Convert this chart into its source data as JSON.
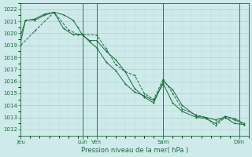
{
  "background_color": "#ceeaea",
  "grid_major_color": "#aacfcf",
  "grid_minor_color": "#bedddd",
  "line_color": "#1a6b3a",
  "title": "Pression niveau de la mer( hPa )",
  "ylim": [
    1011.5,
    1022.5
  ],
  "yticks": [
    1012,
    1013,
    1014,
    1015,
    1016,
    1017,
    1018,
    1019,
    1020,
    1021,
    1022
  ],
  "day_labels": [
    "Jeu",
    "Lun",
    "Ven",
    "Sam",
    "Dim"
  ],
  "day_positions": [
    0.0,
    6.5,
    8.0,
    15.0,
    23.0
  ],
  "vline_positions": [
    6.5,
    8.0,
    15.0,
    23.0
  ],
  "xlim": [
    0,
    24
  ],
  "series1": [
    [
      0.0,
      1019.3
    ],
    [
      0.5,
      1021.1
    ],
    [
      1.5,
      1021.1
    ],
    [
      2.5,
      1021.5
    ],
    [
      3.5,
      1021.75
    ],
    [
      4.5,
      1021.55
    ],
    [
      5.5,
      1021.1
    ],
    [
      6.0,
      1020.5
    ],
    [
      6.5,
      1019.85
    ],
    [
      7.25,
      1019.4
    ],
    [
      8.0,
      1019.4
    ],
    [
      9.0,
      1018.5
    ],
    [
      10.0,
      1017.8
    ],
    [
      11.0,
      1016.8
    ],
    [
      12.0,
      1015.4
    ],
    [
      13.0,
      1014.7
    ],
    [
      14.0,
      1014.2
    ],
    [
      15.0,
      1016.0
    ],
    [
      16.0,
      1015.3
    ],
    [
      17.0,
      1014.0
    ],
    [
      18.5,
      1013.1
    ],
    [
      19.5,
      1013.0
    ],
    [
      20.5,
      1012.8
    ],
    [
      21.5,
      1013.0
    ],
    [
      22.5,
      1012.5
    ],
    [
      23.5,
      1012.4
    ]
  ],
  "series2": [
    [
      0.0,
      1019.85
    ],
    [
      0.5,
      1021.05
    ],
    [
      1.5,
      1021.2
    ],
    [
      2.5,
      1021.6
    ],
    [
      3.5,
      1021.75
    ],
    [
      4.5,
      1020.4
    ],
    [
      5.5,
      1019.9
    ],
    [
      6.0,
      1019.9
    ],
    [
      6.5,
      1019.9
    ],
    [
      7.25,
      1019.3
    ],
    [
      8.0,
      1018.8
    ],
    [
      9.0,
      1017.6
    ],
    [
      10.0,
      1016.9
    ],
    [
      11.0,
      1015.8
    ],
    [
      12.0,
      1015.1
    ],
    [
      13.0,
      1014.8
    ],
    [
      14.0,
      1014.4
    ],
    [
      15.0,
      1015.8
    ],
    [
      16.0,
      1014.2
    ],
    [
      17.0,
      1013.5
    ],
    [
      18.5,
      1013.0
    ],
    [
      19.5,
      1012.9
    ],
    [
      20.5,
      1012.5
    ],
    [
      21.5,
      1013.1
    ],
    [
      22.5,
      1012.9
    ],
    [
      23.5,
      1012.5
    ]
  ],
  "series3": [
    [
      0.0,
      1019.0
    ],
    [
      1.5,
      1020.2
    ],
    [
      3.5,
      1021.75
    ],
    [
      5.0,
      1020.3
    ],
    [
      6.0,
      1019.9
    ],
    [
      6.5,
      1019.9
    ],
    [
      8.0,
      1019.85
    ],
    [
      9.0,
      1018.7
    ],
    [
      10.0,
      1017.4
    ],
    [
      11.0,
      1016.8
    ],
    [
      12.0,
      1016.5
    ],
    [
      13.0,
      1015.0
    ],
    [
      14.0,
      1014.5
    ],
    [
      15.0,
      1016.2
    ],
    [
      16.0,
      1015.0
    ],
    [
      17.0,
      1013.7
    ],
    [
      18.5,
      1013.2
    ],
    [
      19.5,
      1013.0
    ],
    [
      20.5,
      1012.3
    ],
    [
      21.5,
      1013.0
    ],
    [
      22.5,
      1012.8
    ],
    [
      23.5,
      1012.4
    ]
  ]
}
